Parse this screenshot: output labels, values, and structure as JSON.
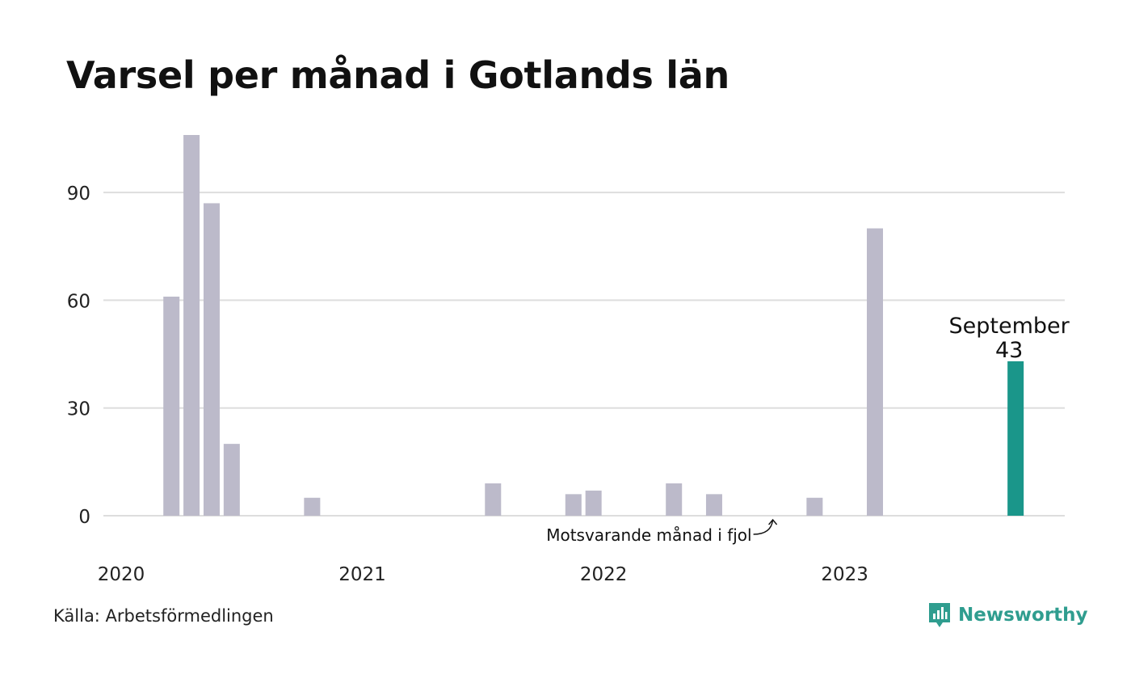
{
  "title": "Varsel per månad i Gotlands län",
  "source": "Källa: Arbetsförmedlingen",
  "brand": "Newsworthy",
  "colors": {
    "bar": "#bcbaca",
    "highlight": "#1a968a",
    "grid": "#dddddd",
    "brand": "#2f9d8f"
  },
  "chart_data": {
    "type": "bar",
    "x_axis": "month",
    "xlim": [
      "2020-01",
      "2023-12"
    ],
    "ylim": [
      0,
      106
    ],
    "yticks": [
      0,
      30,
      60,
      90
    ],
    "xticks": [
      "2020",
      "2021",
      "2022",
      "2023"
    ],
    "grid": true,
    "series": [
      {
        "months": [
          "2020-03",
          "2020-04",
          "2020-05",
          "2020-06",
          "2020-10",
          "2021-07",
          "2021-11",
          "2021-12",
          "2022-04",
          "2022-06",
          "2022-11",
          "2023-02",
          "2023-09"
        ],
        "values": [
          61,
          106,
          87,
          20,
          5,
          9,
          6,
          7,
          9,
          6,
          5,
          80,
          43
        ]
      }
    ],
    "highlight": {
      "month": "2023-09",
      "label": "September",
      "value": "43"
    },
    "annotation": {
      "text": "Motsvarande månad i fjol",
      "month": "2022-09",
      "value": 0
    }
  }
}
